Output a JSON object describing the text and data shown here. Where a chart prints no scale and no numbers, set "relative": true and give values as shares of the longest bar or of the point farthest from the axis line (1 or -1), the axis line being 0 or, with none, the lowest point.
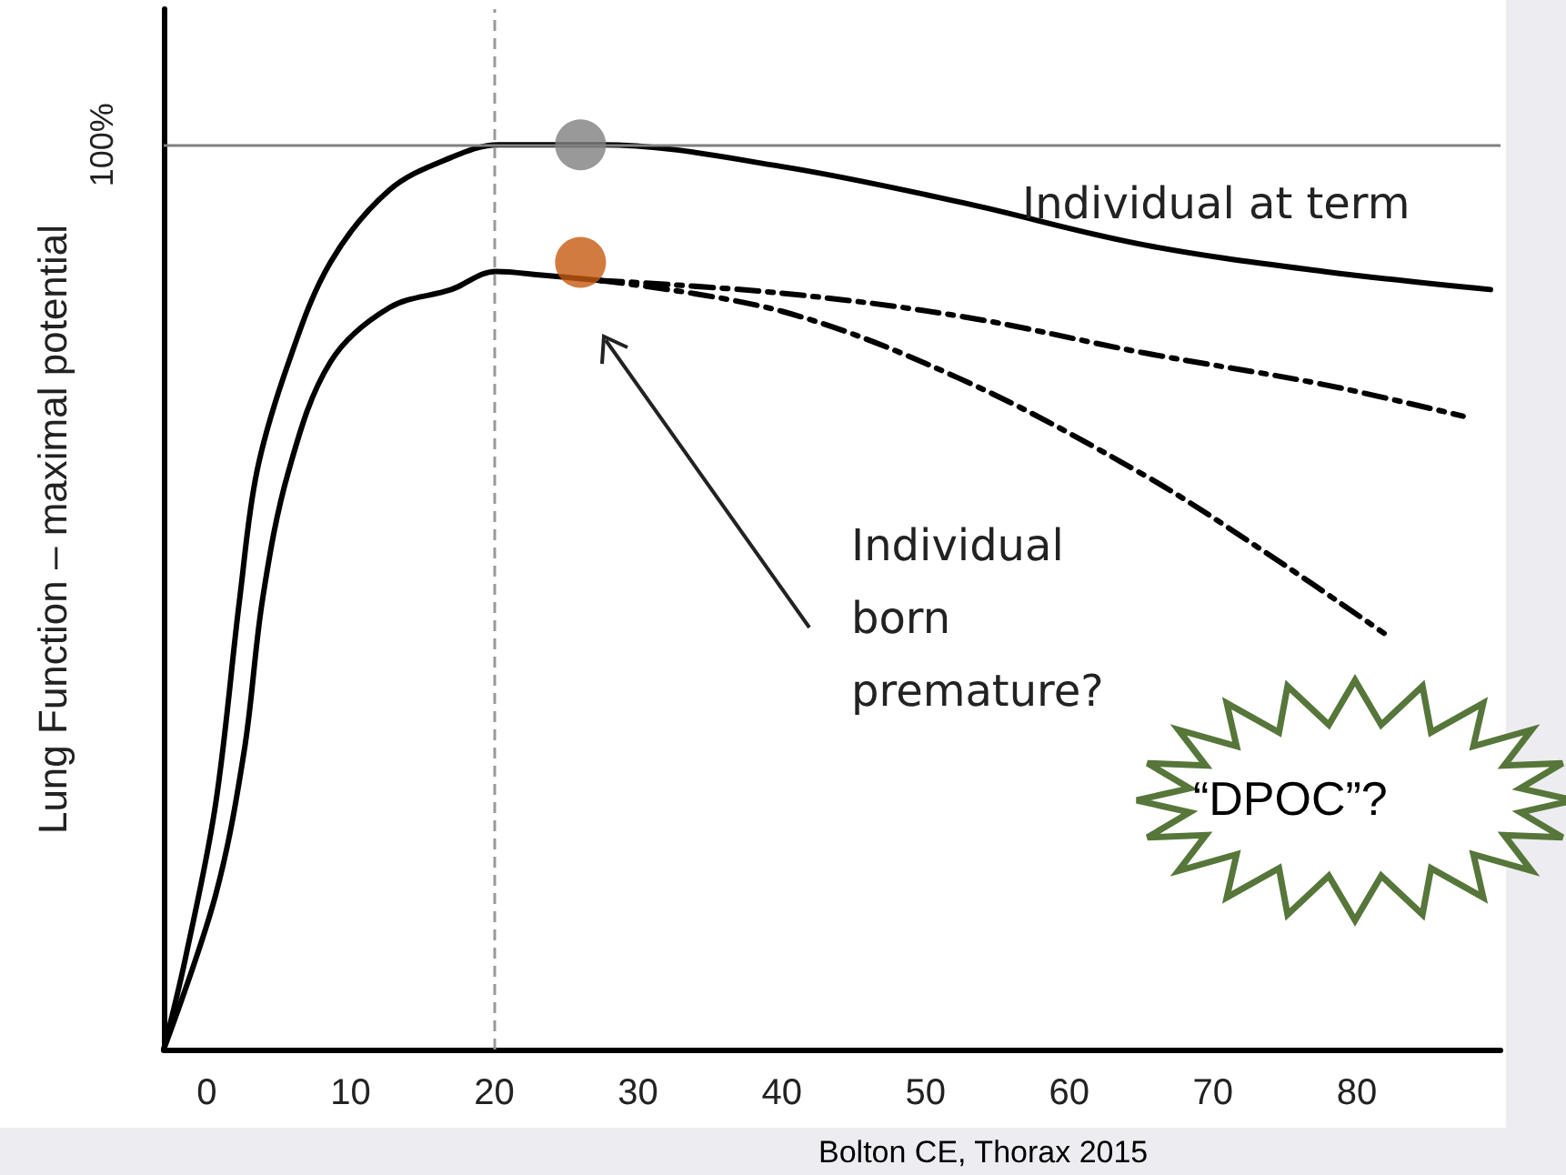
{
  "chart_data": {
    "type": "line",
    "relative": true,
    "ylabel": "Lung Function – maximal potential",
    "xlim": [
      -3,
      90
    ],
    "xticks": [
      0,
      10,
      20,
      30,
      40,
      50,
      60,
      70,
      80
    ],
    "legend": false,
    "grid": false,
    "marker": "none",
    "series": [
      {
        "name": "Individual at term",
        "color": "#000000",
        "x": [
          -3,
          -1.5,
          0.6,
          2.3,
          3.5,
          5.7,
          8.6,
          12.7,
          17,
          20.3,
          25,
          27.4,
          40,
          52.6,
          65,
          77.7,
          89.3
        ],
        "values": [
          0,
          0.1,
          0.27,
          0.5,
          0.64,
          0.76,
          0.87,
          0.95,
          0.986,
          1.0,
          1.0,
          1.0,
          0.976,
          0.936,
          0.89,
          0.86,
          0.84
        ]
      },
      {
        "name": "Individual born premature?",
        "color": "#000000",
        "x": [
          -3,
          0.6,
          2.6,
          3.9,
          5.7,
          8.6,
          12.7,
          17,
          20.1,
          23.3,
          27.4
        ],
        "values": [
          0,
          0.17,
          0.33,
          0.5,
          0.64,
          0.76,
          0.82,
          0.84,
          0.86,
          0.856,
          0.85
        ]
      },
      {
        "color": "#000000",
        "line_style": "dashed",
        "x": [
          27.4,
          40,
          52.6,
          65.2,
          77.7,
          87.4
        ],
        "values": [
          0.85,
          0.836,
          0.81,
          0.77,
          0.735,
          0.7
        ]
      },
      {
        "color": "#000000",
        "line_style": "dashed",
        "x": [
          27.4,
          40,
          52.6,
          65.2,
          73.6,
          81.9
        ],
        "values": [
          0.85,
          0.816,
          0.74,
          0.635,
          0.55,
          0.46
        ]
      },
      {
        "type": "scatter",
        "marker": "circle",
        "colors": [
          "#808080",
          "#c55a11"
        ],
        "x": [
          26,
          26
        ],
        "values": [
          1.0,
          0.87
        ]
      }
    ],
    "ref_lines": [
      {
        "axis": "y",
        "value": 1,
        "label": "100%",
        "color": "#808080"
      },
      {
        "axis": "x",
        "value": 20,
        "line_style": "dashed",
        "color": "#999999"
      }
    ],
    "annotations": [
      "“DPOC”?",
      "Bolton CE, Thorax 2015"
    ]
  }
}
